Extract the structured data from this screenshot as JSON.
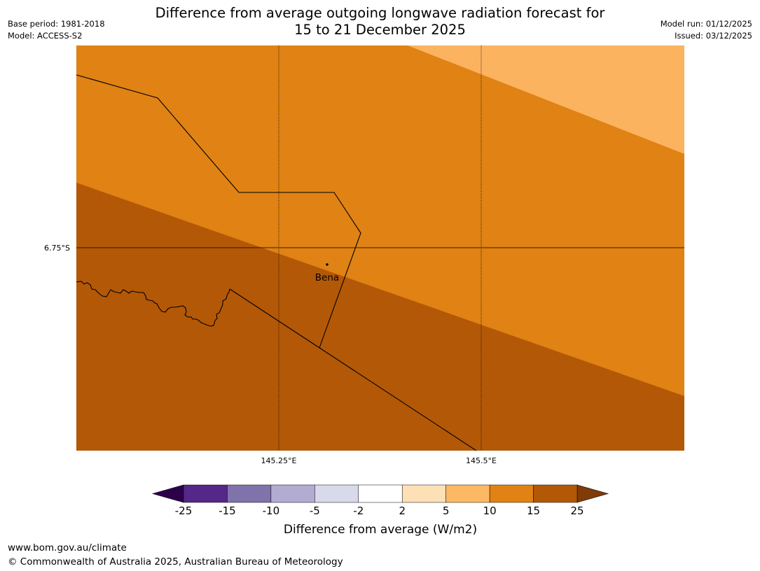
{
  "title": {
    "line1": "Difference from average outgoing longwave radiation forecast for",
    "line2": "15 to 21 December 2025"
  },
  "meta": {
    "base_period": "Base period: 1981-2018",
    "model": "Model: ACCESS-S2",
    "model_run": "Model run: 01/12/2025",
    "issued": "Issued: 03/12/2025"
  },
  "map": {
    "lat_label": "6.75°S",
    "lon_labels": [
      "145.25°E",
      "145.5°E"
    ],
    "place": "Bena",
    "colors": {
      "band_5_10": "#fbb35f",
      "band_10_15": "#e08214",
      "band_15_25": "#b35806",
      "borders": "#000000"
    }
  },
  "colorbar": {
    "ticks": [
      "-25",
      "-15",
      "-10",
      "-5",
      "-2",
      "2",
      "5",
      "10",
      "15",
      "25"
    ],
    "colors": [
      "#542788",
      "#8073ac",
      "#b2abd2",
      "#d8daeb",
      "#ffffff",
      "#fee0b6",
      "#fdb863",
      "#e08214",
      "#b35806"
    ],
    "extend_low_color": "#2d004b",
    "extend_high_color": "#7f3b08",
    "label": "Difference from average (W/m2)"
  },
  "footer": {
    "url": "www.bom.gov.au/climate",
    "copyright": "© Commonwealth of Australia 2025, Australian Bureau of Meteorology"
  }
}
